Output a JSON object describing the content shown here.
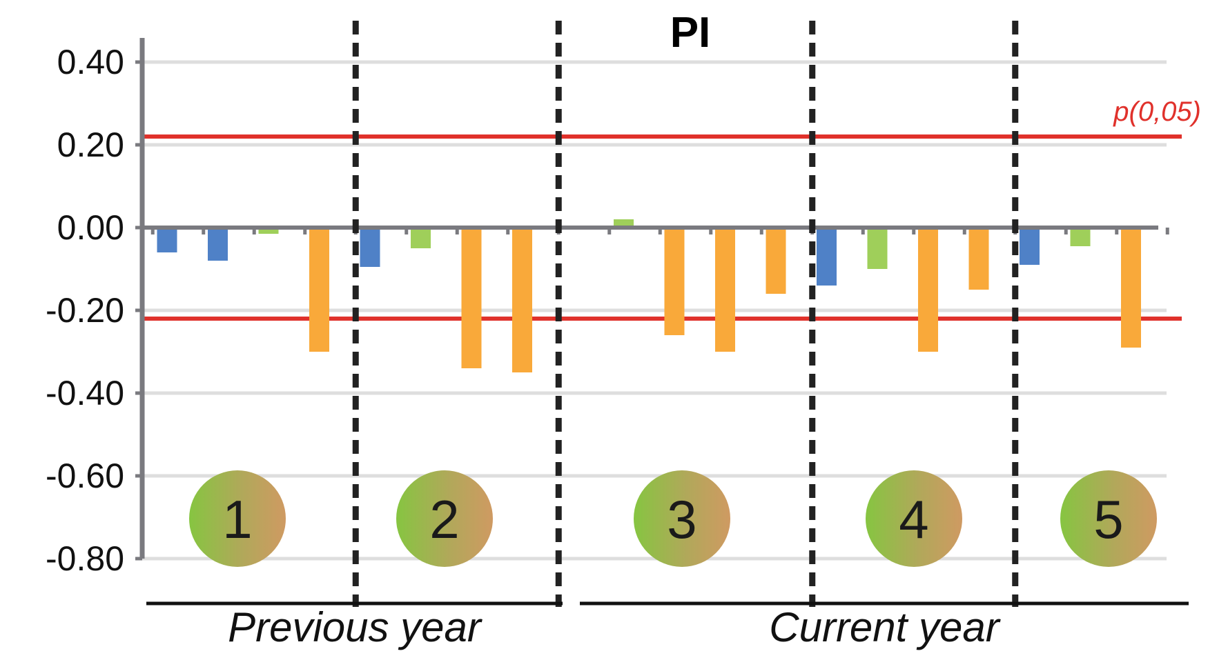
{
  "chart_data": {
    "type": "bar",
    "title": "PI",
    "xlabel": "",
    "ylabel": "",
    "ylim": [
      -0.8,
      0.45
    ],
    "yticks": [
      0.4,
      0.2,
      0.0,
      -0.2,
      -0.4,
      -0.6,
      -0.8
    ],
    "ytick_labels": [
      "0.40",
      "0.20",
      "0.00",
      "-0.20",
      "-0.40",
      "-0.60",
      "-0.80"
    ],
    "grid": true,
    "colors": {
      "blue": "#4f81c7",
      "green": "#9fcf5a",
      "orange": "#f9a93a",
      "threshold": "#e0312b",
      "axis": "#7a7a7f",
      "divider": "#222222"
    },
    "threshold": {
      "label": "p(0,05)",
      "values": [
        0.22,
        -0.22
      ]
    },
    "bars": [
      {
        "slot": 0,
        "value": -0.06,
        "color": "blue"
      },
      {
        "slot": 1,
        "value": -0.08,
        "color": "blue"
      },
      {
        "slot": 2,
        "value": -0.015,
        "color": "green"
      },
      {
        "slot": 3,
        "value": -0.3,
        "color": "orange"
      },
      {
        "slot": 4,
        "value": -0.095,
        "color": "blue"
      },
      {
        "slot": 5,
        "value": -0.05,
        "color": "green"
      },
      {
        "slot": 6,
        "value": -0.34,
        "color": "orange"
      },
      {
        "slot": 7,
        "value": -0.35,
        "color": "orange"
      },
      {
        "slot": 8,
        "value": -0.005,
        "color": "blue"
      },
      {
        "slot": 9,
        "value": 0.02,
        "color": "green"
      },
      {
        "slot": 10,
        "value": -0.26,
        "color": "orange"
      },
      {
        "slot": 11,
        "value": -0.3,
        "color": "orange"
      },
      {
        "slot": 12,
        "value": -0.16,
        "color": "orange"
      },
      {
        "slot": 13,
        "value": -0.14,
        "color": "blue"
      },
      {
        "slot": 14,
        "value": -0.1,
        "color": "green"
      },
      {
        "slot": 15,
        "value": -0.3,
        "color": "orange"
      },
      {
        "slot": 16,
        "value": -0.15,
        "color": "orange"
      },
      {
        "slot": 17,
        "value": -0.09,
        "color": "blue"
      },
      {
        "slot": 18,
        "value": -0.045,
        "color": "green"
      },
      {
        "slot": 19,
        "value": -0.29,
        "color": "orange"
      }
    ],
    "groups": [
      {
        "label": "1",
        "slots": [
          0,
          3
        ]
      },
      {
        "label": "2",
        "slots": [
          4,
          7
        ]
      },
      {
        "label": "3",
        "slots": [
          8,
          12
        ]
      },
      {
        "label": "4",
        "slots": [
          13,
          16
        ]
      },
      {
        "label": "5",
        "slots": [
          17,
          19
        ]
      }
    ],
    "periods": [
      {
        "label": "Previous year",
        "groups": [
          1,
          2
        ]
      },
      {
        "label": "Current year",
        "groups": [
          3,
          5
        ]
      }
    ]
  }
}
